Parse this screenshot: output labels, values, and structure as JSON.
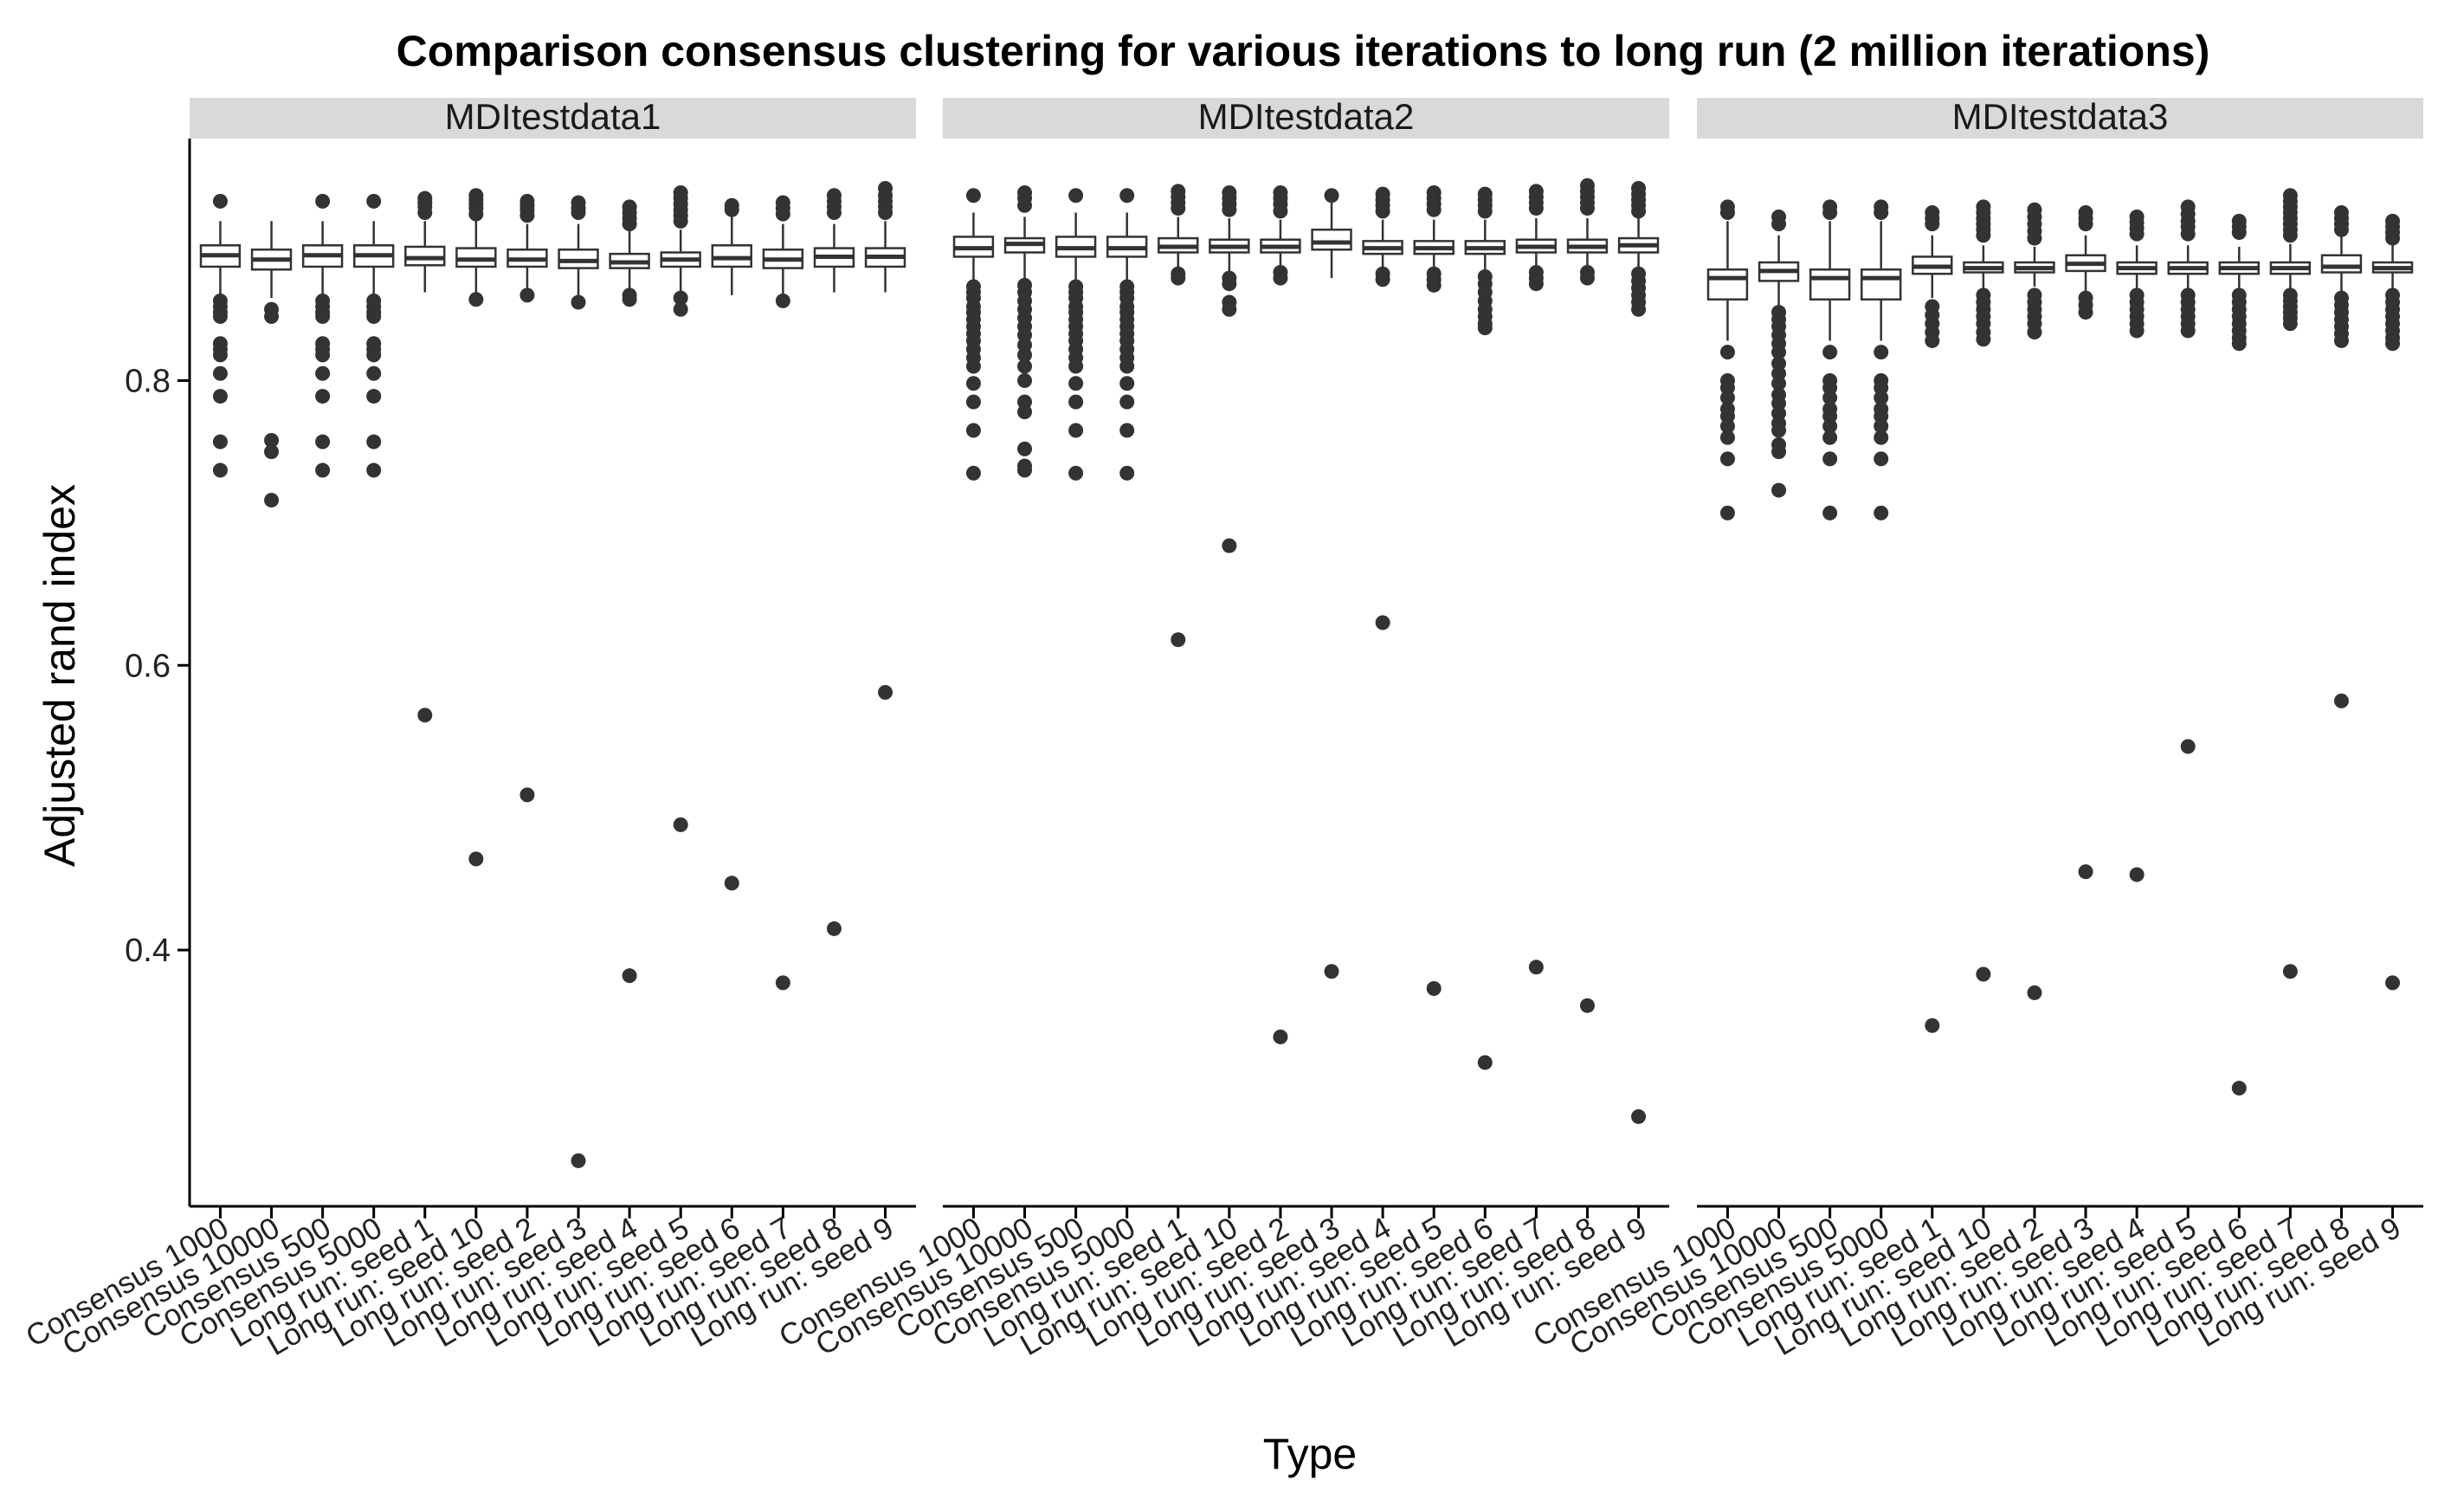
{
  "chart_data": {
    "type": "box",
    "title": "Comparison consensus clustering for various iterations to long run (2 million iterations)",
    "xlabel": "Type",
    "ylabel": "Adjusted rand index",
    "ylim": [
      0.22,
      0.97
    ],
    "yticks": [
      "0.4",
      "0.6",
      "0.8"
    ],
    "ytick_values": [
      0.4,
      0.6,
      0.8
    ],
    "grid": false,
    "legend": "none",
    "colors": {
      "box_fill": "#ffffff",
      "box_stroke": "#333333",
      "outlier": "#333333",
      "strip_bg": "#d9d9d9",
      "axis": "#000000"
    },
    "categories": [
      "Consensus 1000",
      "Consensus 10000",
      "Consensus 500",
      "Consensus 5000",
      "Long run: seed 1",
      "Long run: seed 10",
      "Long run: seed 2",
      "Long run: seed 3",
      "Long run: seed 4",
      "Long run: seed 5",
      "Long run: seed 6",
      "Long run: seed 7",
      "Long run: seed 8",
      "Long run: seed 9"
    ],
    "panels": [
      {
        "name": "MDItestdata1",
        "boxes": [
          {
            "q1": 0.88,
            "median": 0.888,
            "q3": 0.895,
            "whisker_low": 0.86,
            "whisker_high": 0.912,
            "outliers": [
              0.926,
              0.856,
              0.852,
              0.848,
              0.845,
              0.826,
              0.822,
              0.818,
              0.805,
              0.789,
              0.757,
              0.737
            ]
          },
          {
            "q1": 0.878,
            "median": 0.885,
            "q3": 0.892,
            "whisker_low": 0.858,
            "whisker_high": 0.912,
            "outliers": [
              0.85,
              0.845,
              0.758,
              0.75,
              0.716
            ]
          },
          {
            "q1": 0.88,
            "median": 0.888,
            "q3": 0.895,
            "whisker_low": 0.86,
            "whisker_high": 0.912,
            "outliers": [
              0.926,
              0.856,
              0.852,
              0.848,
              0.845,
              0.826,
              0.822,
              0.818,
              0.805,
              0.789,
              0.757,
              0.737
            ]
          },
          {
            "q1": 0.88,
            "median": 0.888,
            "q3": 0.895,
            "whisker_low": 0.86,
            "whisker_high": 0.912,
            "outliers": [
              0.926,
              0.856,
              0.852,
              0.848,
              0.845,
              0.826,
              0.822,
              0.818,
              0.805,
              0.789,
              0.757,
              0.737
            ]
          },
          {
            "q1": 0.881,
            "median": 0.886,
            "q3": 0.894,
            "whisker_low": 0.862,
            "whisker_high": 0.912,
            "outliers": [
              0.928,
              0.925,
              0.922,
              0.918,
              0.565
            ]
          },
          {
            "q1": 0.88,
            "median": 0.885,
            "q3": 0.893,
            "whisker_low": 0.86,
            "whisker_high": 0.912,
            "outliers": [
              0.93,
              0.927,
              0.924,
              0.921,
              0.917,
              0.857,
              0.464
            ]
          },
          {
            "q1": 0.88,
            "median": 0.885,
            "q3": 0.892,
            "whisker_low": 0.862,
            "whisker_high": 0.91,
            "outliers": [
              0.926,
              0.923,
              0.92,
              0.916,
              0.86,
              0.509
            ]
          },
          {
            "q1": 0.879,
            "median": 0.884,
            "q3": 0.892,
            "whisker_low": 0.86,
            "whisker_high": 0.91,
            "outliers": [
              0.925,
              0.921,
              0.918,
              0.855,
              0.252
            ]
          },
          {
            "q1": 0.879,
            "median": 0.883,
            "q3": 0.889,
            "whisker_low": 0.862,
            "whisker_high": 0.905,
            "outliers": [
              0.922,
              0.918,
              0.914,
              0.91,
              0.86,
              0.857,
              0.382
            ]
          },
          {
            "q1": 0.88,
            "median": 0.885,
            "q3": 0.89,
            "whisker_low": 0.862,
            "whisker_high": 0.906,
            "outliers": [
              0.932,
              0.928,
              0.924,
              0.92,
              0.916,
              0.912,
              0.858,
              0.85,
              0.488
            ]
          },
          {
            "q1": 0.88,
            "median": 0.886,
            "q3": 0.895,
            "whisker_low": 0.86,
            "whisker_high": 0.915,
            "outliers": [
              0.923,
              0.92,
              0.447
            ]
          },
          {
            "q1": 0.879,
            "median": 0.885,
            "q3": 0.892,
            "whisker_low": 0.86,
            "whisker_high": 0.91,
            "outliers": [
              0.925,
              0.921,
              0.917,
              0.856,
              0.377
            ]
          },
          {
            "q1": 0.88,
            "median": 0.887,
            "q3": 0.893,
            "whisker_low": 0.862,
            "whisker_high": 0.91,
            "outliers": [
              0.93,
              0.926,
              0.922,
              0.918,
              0.415
            ]
          },
          {
            "q1": 0.88,
            "median": 0.887,
            "q3": 0.893,
            "whisker_low": 0.862,
            "whisker_high": 0.912,
            "outliers": [
              0.935,
              0.93,
              0.926,
              0.922,
              0.918,
              0.581
            ]
          }
        ]
      },
      {
        "name": "MDItestdata2",
        "boxes": [
          {
            "q1": 0.887,
            "median": 0.893,
            "q3": 0.901,
            "whisker_low": 0.87,
            "whisker_high": 0.918,
            "outliers": [
              0.93,
              0.866,
              0.862,
              0.858,
              0.852,
              0.848,
              0.843,
              0.838,
              0.833,
              0.828,
              0.822,
              0.816,
              0.81,
              0.798,
              0.785,
              0.765,
              0.735
            ]
          },
          {
            "q1": 0.89,
            "median": 0.896,
            "q3": 0.9,
            "whisker_low": 0.872,
            "whisker_high": 0.915,
            "outliers": [
              0.932,
              0.928,
              0.923,
              0.867,
              0.862,
              0.856,
              0.85,
              0.844,
              0.838,
              0.832,
              0.825,
              0.818,
              0.81,
              0.8,
              0.785,
              0.778,
              0.752,
              0.74,
              0.737
            ]
          },
          {
            "q1": 0.887,
            "median": 0.893,
            "q3": 0.901,
            "whisker_low": 0.87,
            "whisker_high": 0.918,
            "outliers": [
              0.93,
              0.866,
              0.862,
              0.858,
              0.852,
              0.848,
              0.843,
              0.838,
              0.833,
              0.828,
              0.822,
              0.816,
              0.81,
              0.798,
              0.785,
              0.765,
              0.735
            ]
          },
          {
            "q1": 0.887,
            "median": 0.893,
            "q3": 0.901,
            "whisker_low": 0.87,
            "whisker_high": 0.918,
            "outliers": [
              0.93,
              0.866,
              0.862,
              0.858,
              0.852,
              0.848,
              0.843,
              0.838,
              0.833,
              0.828,
              0.822,
              0.816,
              0.81,
              0.798,
              0.785,
              0.765,
              0.735
            ]
          },
          {
            "q1": 0.89,
            "median": 0.894,
            "q3": 0.9,
            "whisker_low": 0.878,
            "whisker_high": 0.915,
            "outliers": [
              0.933,
              0.929,
              0.925,
              0.921,
              0.875,
              0.872,
              0.618
            ]
          },
          {
            "q1": 0.89,
            "median": 0.894,
            "q3": 0.899,
            "whisker_low": 0.877,
            "whisker_high": 0.914,
            "outliers": [
              0.932,
              0.928,
              0.924,
              0.92,
              0.872,
              0.868,
              0.855,
              0.85,
              0.684
            ]
          },
          {
            "q1": 0.89,
            "median": 0.894,
            "q3": 0.899,
            "whisker_low": 0.878,
            "whisker_high": 0.913,
            "outliers": [
              0.932,
              0.928,
              0.924,
              0.919,
              0.876,
              0.872,
              0.339
            ]
          },
          {
            "q1": 0.892,
            "median": 0.897,
            "q3": 0.906,
            "whisker_low": 0.872,
            "whisker_high": 0.925,
            "outliers": [
              0.93,
              0.385
            ]
          },
          {
            "q1": 0.889,
            "median": 0.893,
            "q3": 0.898,
            "whisker_low": 0.878,
            "whisker_high": 0.913,
            "outliers": [
              0.931,
              0.927,
              0.923,
              0.919,
              0.875,
              0.871,
              0.63
            ]
          },
          {
            "q1": 0.889,
            "median": 0.893,
            "q3": 0.898,
            "whisker_low": 0.878,
            "whisker_high": 0.913,
            "outliers": [
              0.932,
              0.928,
              0.924,
              0.92,
              0.875,
              0.871,
              0.867,
              0.373
            ]
          },
          {
            "q1": 0.889,
            "median": 0.893,
            "q3": 0.898,
            "whisker_low": 0.878,
            "whisker_high": 0.913,
            "outliers": [
              0.931,
              0.927,
              0.923,
              0.919,
              0.873,
              0.868,
              0.862,
              0.856,
              0.85,
              0.845,
              0.84,
              0.837,
              0.321
            ]
          },
          {
            "q1": 0.89,
            "median": 0.894,
            "q3": 0.899,
            "whisker_low": 0.878,
            "whisker_high": 0.914,
            "outliers": [
              0.933,
              0.929,
              0.925,
              0.921,
              0.876,
              0.872,
              0.868,
              0.388
            ]
          },
          {
            "q1": 0.89,
            "median": 0.894,
            "q3": 0.899,
            "whisker_low": 0.878,
            "whisker_high": 0.914,
            "outliers": [
              0.937,
              0.933,
              0.929,
              0.925,
              0.921,
              0.876,
              0.872,
              0.361
            ]
          },
          {
            "q1": 0.89,
            "median": 0.895,
            "q3": 0.9,
            "whisker_low": 0.878,
            "whisker_high": 0.915,
            "outliers": [
              0.935,
              0.931,
              0.927,
              0.923,
              0.919,
              0.875,
              0.87,
              0.865,
              0.86,
              0.855,
              0.85,
              0.283
            ]
          }
        ]
      },
      {
        "name": "MDItestdata3",
        "boxes": [
          {
            "q1": 0.857,
            "median": 0.872,
            "q3": 0.878,
            "whisker_low": 0.828,
            "whisker_high": 0.912,
            "outliers": [
              0.922,
              0.918,
              0.82,
              0.8,
              0.795,
              0.788,
              0.78,
              0.775,
              0.768,
              0.76,
              0.745,
              0.707
            ]
          },
          {
            "q1": 0.87,
            "median": 0.877,
            "q3": 0.883,
            "whisker_low": 0.852,
            "whisker_high": 0.902,
            "outliers": [
              0.915,
              0.91,
              0.848,
              0.843,
              0.838,
              0.832,
              0.826,
              0.82,
              0.812,
              0.805,
              0.798,
              0.79,
              0.784,
              0.777,
              0.77,
              0.765,
              0.755,
              0.75,
              0.723
            ]
          },
          {
            "q1": 0.857,
            "median": 0.872,
            "q3": 0.878,
            "whisker_low": 0.828,
            "whisker_high": 0.912,
            "outliers": [
              0.922,
              0.918,
              0.82,
              0.8,
              0.795,
              0.788,
              0.78,
              0.775,
              0.768,
              0.76,
              0.745,
              0.707
            ]
          },
          {
            "q1": 0.857,
            "median": 0.872,
            "q3": 0.878,
            "whisker_low": 0.828,
            "whisker_high": 0.912,
            "outliers": [
              0.922,
              0.918,
              0.82,
              0.8,
              0.795,
              0.788,
              0.78,
              0.775,
              0.768,
              0.76,
              0.745,
              0.707
            ]
          },
          {
            "q1": 0.875,
            "median": 0.88,
            "q3": 0.887,
            "whisker_low": 0.858,
            "whisker_high": 0.902,
            "outliers": [
              0.918,
              0.914,
              0.91,
              0.852,
              0.846,
              0.84,
              0.834,
              0.828,
              0.347
            ]
          },
          {
            "q1": 0.876,
            "median": 0.879,
            "q3": 0.883,
            "whisker_low": 0.865,
            "whisker_high": 0.895,
            "outliers": [
              0.922,
              0.918,
              0.914,
              0.91,
              0.906,
              0.902,
              0.86,
              0.855,
              0.85,
              0.845,
              0.84,
              0.834,
              0.829,
              0.383
            ]
          },
          {
            "q1": 0.876,
            "median": 0.879,
            "q3": 0.883,
            "whisker_low": 0.866,
            "whisker_high": 0.894,
            "outliers": [
              0.92,
              0.915,
              0.91,
              0.905,
              0.9,
              0.86,
              0.855,
              0.85,
              0.845,
              0.84,
              0.834,
              0.37
            ]
          },
          {
            "q1": 0.877,
            "median": 0.882,
            "q3": 0.888,
            "whisker_low": 0.862,
            "whisker_high": 0.902,
            "outliers": [
              0.918,
              0.914,
              0.91,
              0.858,
              0.853,
              0.848,
              0.455
            ]
          },
          {
            "q1": 0.875,
            "median": 0.879,
            "q3": 0.883,
            "whisker_low": 0.864,
            "whisker_high": 0.895,
            "outliers": [
              0.915,
              0.911,
              0.907,
              0.903,
              0.86,
              0.855,
              0.85,
              0.845,
              0.84,
              0.835,
              0.453
            ]
          },
          {
            "q1": 0.875,
            "median": 0.879,
            "q3": 0.883,
            "whisker_low": 0.864,
            "whisker_high": 0.895,
            "outliers": [
              0.922,
              0.917,
              0.912,
              0.908,
              0.903,
              0.86,
              0.855,
              0.85,
              0.845,
              0.84,
              0.835,
              0.543
            ]
          },
          {
            "q1": 0.875,
            "median": 0.879,
            "q3": 0.883,
            "whisker_low": 0.864,
            "whisker_high": 0.894,
            "outliers": [
              0.912,
              0.908,
              0.904,
              0.86,
              0.855,
              0.85,
              0.845,
              0.84,
              0.835,
              0.83,
              0.826,
              0.303
            ]
          },
          {
            "q1": 0.875,
            "median": 0.879,
            "q3": 0.883,
            "whisker_low": 0.864,
            "whisker_high": 0.896,
            "outliers": [
              0.93,
              0.926,
              0.922,
              0.918,
              0.914,
              0.91,
              0.906,
              0.902,
              0.86,
              0.856,
              0.852,
              0.848,
              0.844,
              0.84,
              0.385
            ]
          },
          {
            "q1": 0.876,
            "median": 0.88,
            "q3": 0.888,
            "whisker_low": 0.862,
            "whisker_high": 0.902,
            "outliers": [
              0.918,
              0.914,
              0.91,
              0.906,
              0.858,
              0.853,
              0.848,
              0.843,
              0.838,
              0.833,
              0.828,
              0.575
            ]
          },
          {
            "q1": 0.876,
            "median": 0.879,
            "q3": 0.883,
            "whisker_low": 0.865,
            "whisker_high": 0.895,
            "outliers": [
              0.912,
              0.908,
              0.904,
              0.9,
              0.86,
              0.855,
              0.85,
              0.845,
              0.84,
              0.835,
              0.83,
              0.826,
              0.377
            ]
          }
        ]
      }
    ]
  }
}
